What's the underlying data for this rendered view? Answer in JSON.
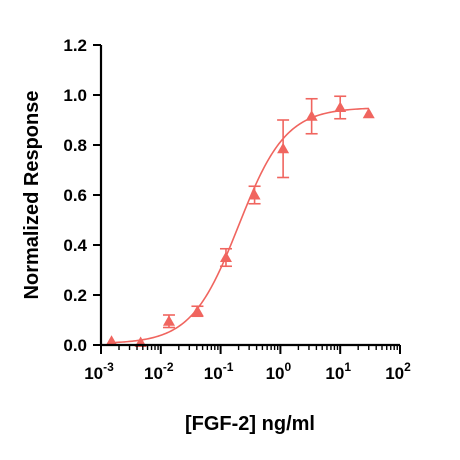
{
  "chart_data": {
    "type": "scatter",
    "title": "",
    "xlabel": "[FGF-2] ng/ml",
    "ylabel": "Normalized Response",
    "x_scale": "log",
    "xlim": [
      0.001,
      100
    ],
    "ylim": [
      0,
      1.2
    ],
    "x_ticks": [
      {
        "value": 0.001,
        "base": "10",
        "exp": "-3"
      },
      {
        "value": 0.01,
        "base": "10",
        "exp": "-2"
      },
      {
        "value": 0.1,
        "base": "10",
        "exp": "-1"
      },
      {
        "value": 1,
        "base": "10",
        "exp": "0"
      },
      {
        "value": 10,
        "base": "10",
        "exp": "1"
      },
      {
        "value": 100,
        "base": "10",
        "exp": "2"
      }
    ],
    "y_ticks": [
      {
        "value": 0,
        "label": "0.0"
      },
      {
        "value": 0.2,
        "label": "0.2"
      },
      {
        "value": 0.4,
        "label": "0.4"
      },
      {
        "value": 0.6,
        "label": "0.6"
      },
      {
        "value": 0.8,
        "label": "0.8"
      },
      {
        "value": 1.0,
        "label": "1.0"
      },
      {
        "value": 1.2,
        "label": "1.2"
      }
    ],
    "grid": false,
    "color": "#f0655f",
    "marker": "triangle",
    "series": [
      {
        "x": [
          0.0015,
          0.0046,
          0.0137,
          0.041,
          0.123,
          0.37,
          1.11,
          3.33,
          10,
          30
        ],
        "y": [
          0.015,
          0.01,
          0.095,
          0.135,
          0.35,
          0.6,
          0.785,
          0.915,
          0.95,
          0.925
        ],
        "err": [
          0.0,
          0.0,
          0.025,
          0.02,
          0.035,
          0.035,
          0.115,
          0.07,
          0.045,
          0.0
        ]
      }
    ],
    "fit": {
      "model": "4PL",
      "bottom": 0.005,
      "top": 0.95,
      "ec50": 0.2,
      "hill": 1.1
    }
  }
}
